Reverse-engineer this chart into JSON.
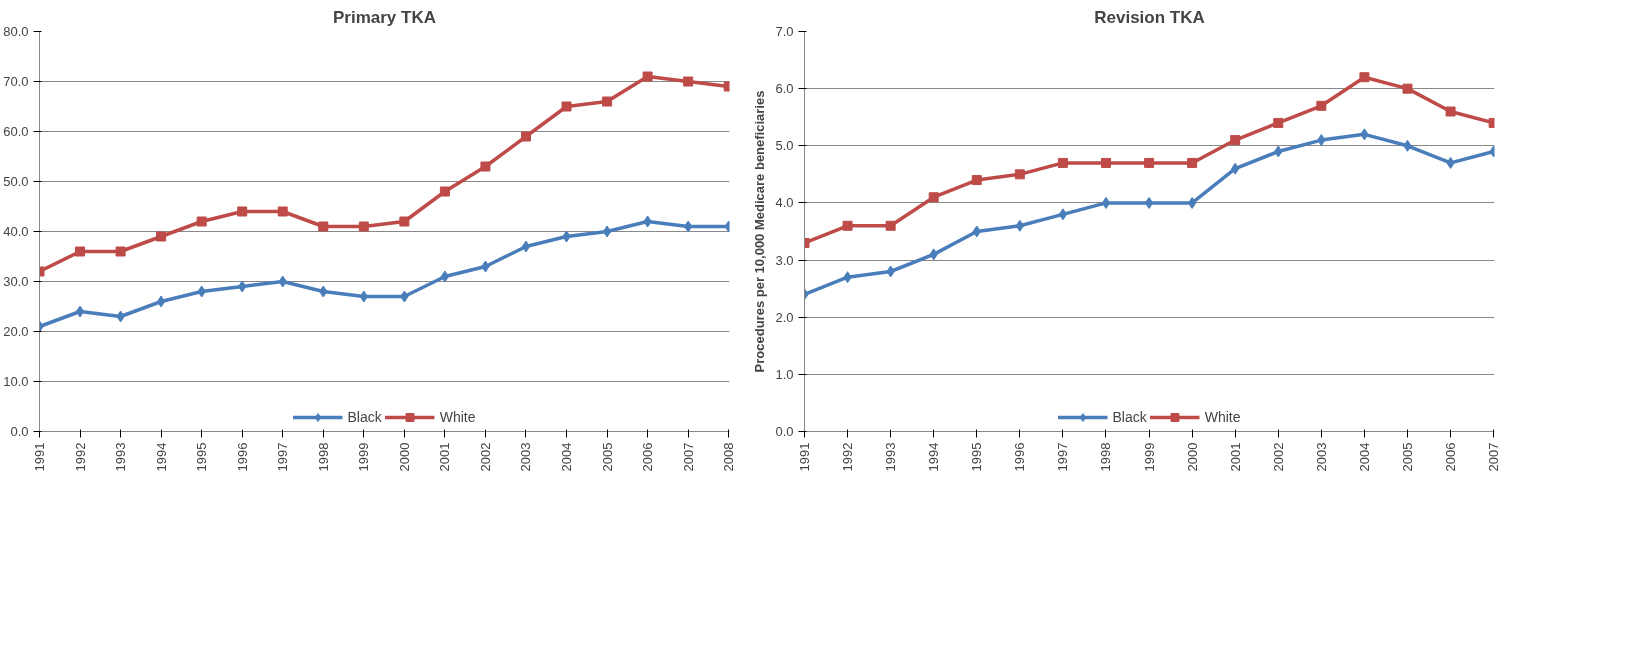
{
  "chart_data": [
    {
      "type": "line",
      "title": "Primary TKA",
      "categories": [
        "1991",
        "1992",
        "1993",
        "1994",
        "1995",
        "1996",
        "1997",
        "1998",
        "1999",
        "2000",
        "2001",
        "2002",
        "2003",
        "2004",
        "2005",
        "2006",
        "2007",
        "2008"
      ],
      "series": [
        {
          "name": "Black",
          "color": "#4a7ebb",
          "marker": "diamond",
          "values": [
            21,
            24,
            23,
            26,
            28,
            29,
            30,
            28,
            27,
            27,
            31,
            33,
            37,
            39,
            40,
            42,
            41,
            41
          ]
        },
        {
          "name": "White",
          "color": "#be4b48",
          "marker": "square",
          "values": [
            32,
            36,
            36,
            39,
            42,
            44,
            44,
            41,
            41,
            42,
            48,
            53,
            59,
            65,
            66,
            71,
            70,
            69
          ]
        }
      ],
      "ylim": [
        0,
        80
      ],
      "yticks": [
        {
          "value": 0,
          "label": "0.0"
        },
        {
          "value": 10,
          "label": "10.0"
        },
        {
          "value": 20,
          "label": "20.0"
        },
        {
          "value": 30,
          "label": "30.0"
        },
        {
          "value": 40,
          "label": "40.0"
        },
        {
          "value": 50,
          "label": "50.0"
        },
        {
          "value": 60,
          "label": "60.0"
        },
        {
          "value": 70,
          "label": "70.0"
        },
        {
          "value": 80,
          "label": "80.0"
        }
      ],
      "grid": "y",
      "legend": "bottom"
    },
    {
      "type": "line",
      "title": "Revision TKA",
      "ylabel": "Procedures per 10,000 Medicare beneficiaries",
      "categories": [
        "1991",
        "1992",
        "1993",
        "1994",
        "1995",
        "1996",
        "1997",
        "1998",
        "1999",
        "2000",
        "2001",
        "2002",
        "2003",
        "2004",
        "2005",
        "2006",
        "2007"
      ],
      "series": [
        {
          "name": "Black",
          "color": "#4a7ebb",
          "marker": "diamond",
          "values": [
            2.4,
            2.7,
            2.8,
            3.1,
            3.5,
            3.6,
            3.8,
            4.0,
            4.0,
            4.0,
            4.6,
            4.9,
            5.1,
            5.2,
            5.0,
            4.7,
            4.9
          ]
        },
        {
          "name": "White",
          "color": "#be4b48",
          "marker": "square",
          "values": [
            3.3,
            3.6,
            3.6,
            4.1,
            4.4,
            4.5,
            4.7,
            4.7,
            4.7,
            4.7,
            5.1,
            5.4,
            5.7,
            6.2,
            6.0,
            5.6,
            5.4
          ]
        }
      ],
      "ylim": [
        0,
        7
      ],
      "yticks": [
        {
          "value": 0,
          "label": "0.0"
        },
        {
          "value": 1,
          "label": "1.0"
        },
        {
          "value": 2,
          "label": "2.0"
        },
        {
          "value": 3,
          "label": "3.0"
        },
        {
          "value": 4,
          "label": "4.0"
        },
        {
          "value": 5,
          "label": "5.0"
        },
        {
          "value": 6,
          "label": "6.0"
        },
        {
          "value": 7,
          "label": "7.0"
        }
      ],
      "grid": "y",
      "legend": "bottom"
    }
  ]
}
